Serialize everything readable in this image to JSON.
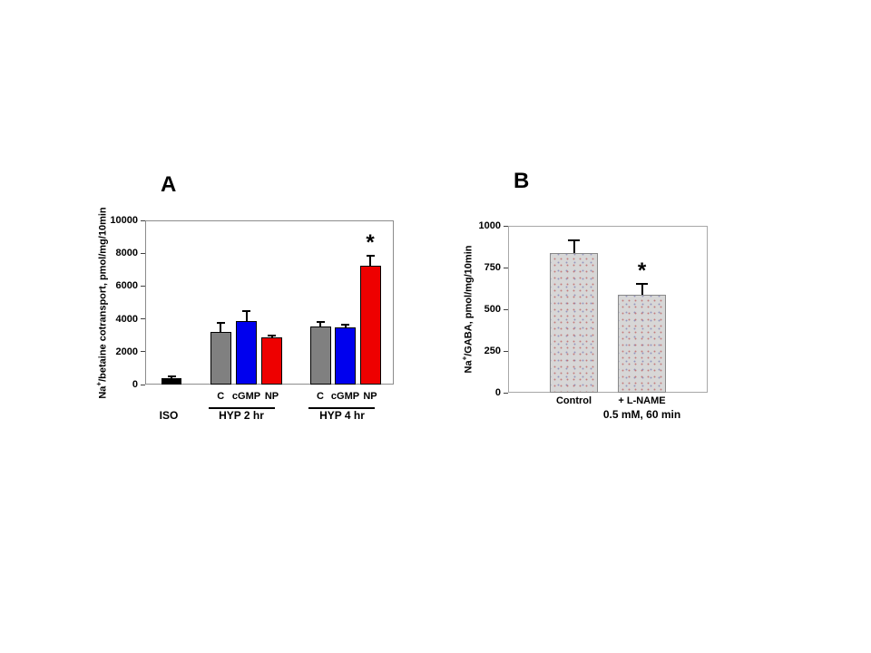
{
  "chart_data": [
    {
      "type": "bar",
      "panel_letter": "A",
      "ylabel": {
        "pre": "Na",
        "sup": "+",
        "post": "/betaine cotransport, pmol/mg/10min"
      },
      "ylim": [
        0,
        10000
      ],
      "yticks": [
        "0",
        "2000",
        "4000",
        "6000",
        "8000",
        "10000"
      ],
      "grid": "off",
      "legend": "none",
      "bars": [
        {
          "label": "",
          "value": 400,
          "err": 100,
          "color": "#000000"
        },
        {
          "label": "C",
          "value": 3200,
          "err": 550,
          "color": "#808080"
        },
        {
          "label": "cGMP",
          "value": 3850,
          "err": 600,
          "color": "#0000ee"
        },
        {
          "label": "NP",
          "value": 2850,
          "err": 150,
          "color": "#ee0000"
        },
        {
          "label": "C",
          "value": 3550,
          "err": 280,
          "color": "#808080"
        },
        {
          "label": "cGMP",
          "value": 3500,
          "err": 120,
          "color": "#0000ee"
        },
        {
          "label": "NP",
          "value": 7250,
          "err": 600,
          "color": "#ee0000",
          "annotation": "*"
        }
      ],
      "groups": [
        {
          "label": "ISO",
          "underline": false
        },
        {
          "label": "HYP 2 hr",
          "underline": true
        },
        {
          "label": "HYP 4 hr",
          "underline": true
        }
      ]
    },
    {
      "type": "bar",
      "panel_letter": "B",
      "ylabel": {
        "pre": "Na",
        "sup": "+",
        "post": "/GABA, pmol/mg/10min"
      },
      "ylim": [
        0,
        1000
      ],
      "yticks": [
        "0",
        "250",
        "500",
        "750",
        "1000"
      ],
      "grid": "off",
      "legend": "none",
      "bars": [
        {
          "label": "Control",
          "label2": "",
          "value": 835,
          "err": 80,
          "pattern": "stipple"
        },
        {
          "label": "+ L-NAME",
          "label2": "0.5 mM, 60 min",
          "value": 585,
          "err": 65,
          "pattern": "stipple",
          "annotation": "*"
        }
      ]
    }
  ]
}
